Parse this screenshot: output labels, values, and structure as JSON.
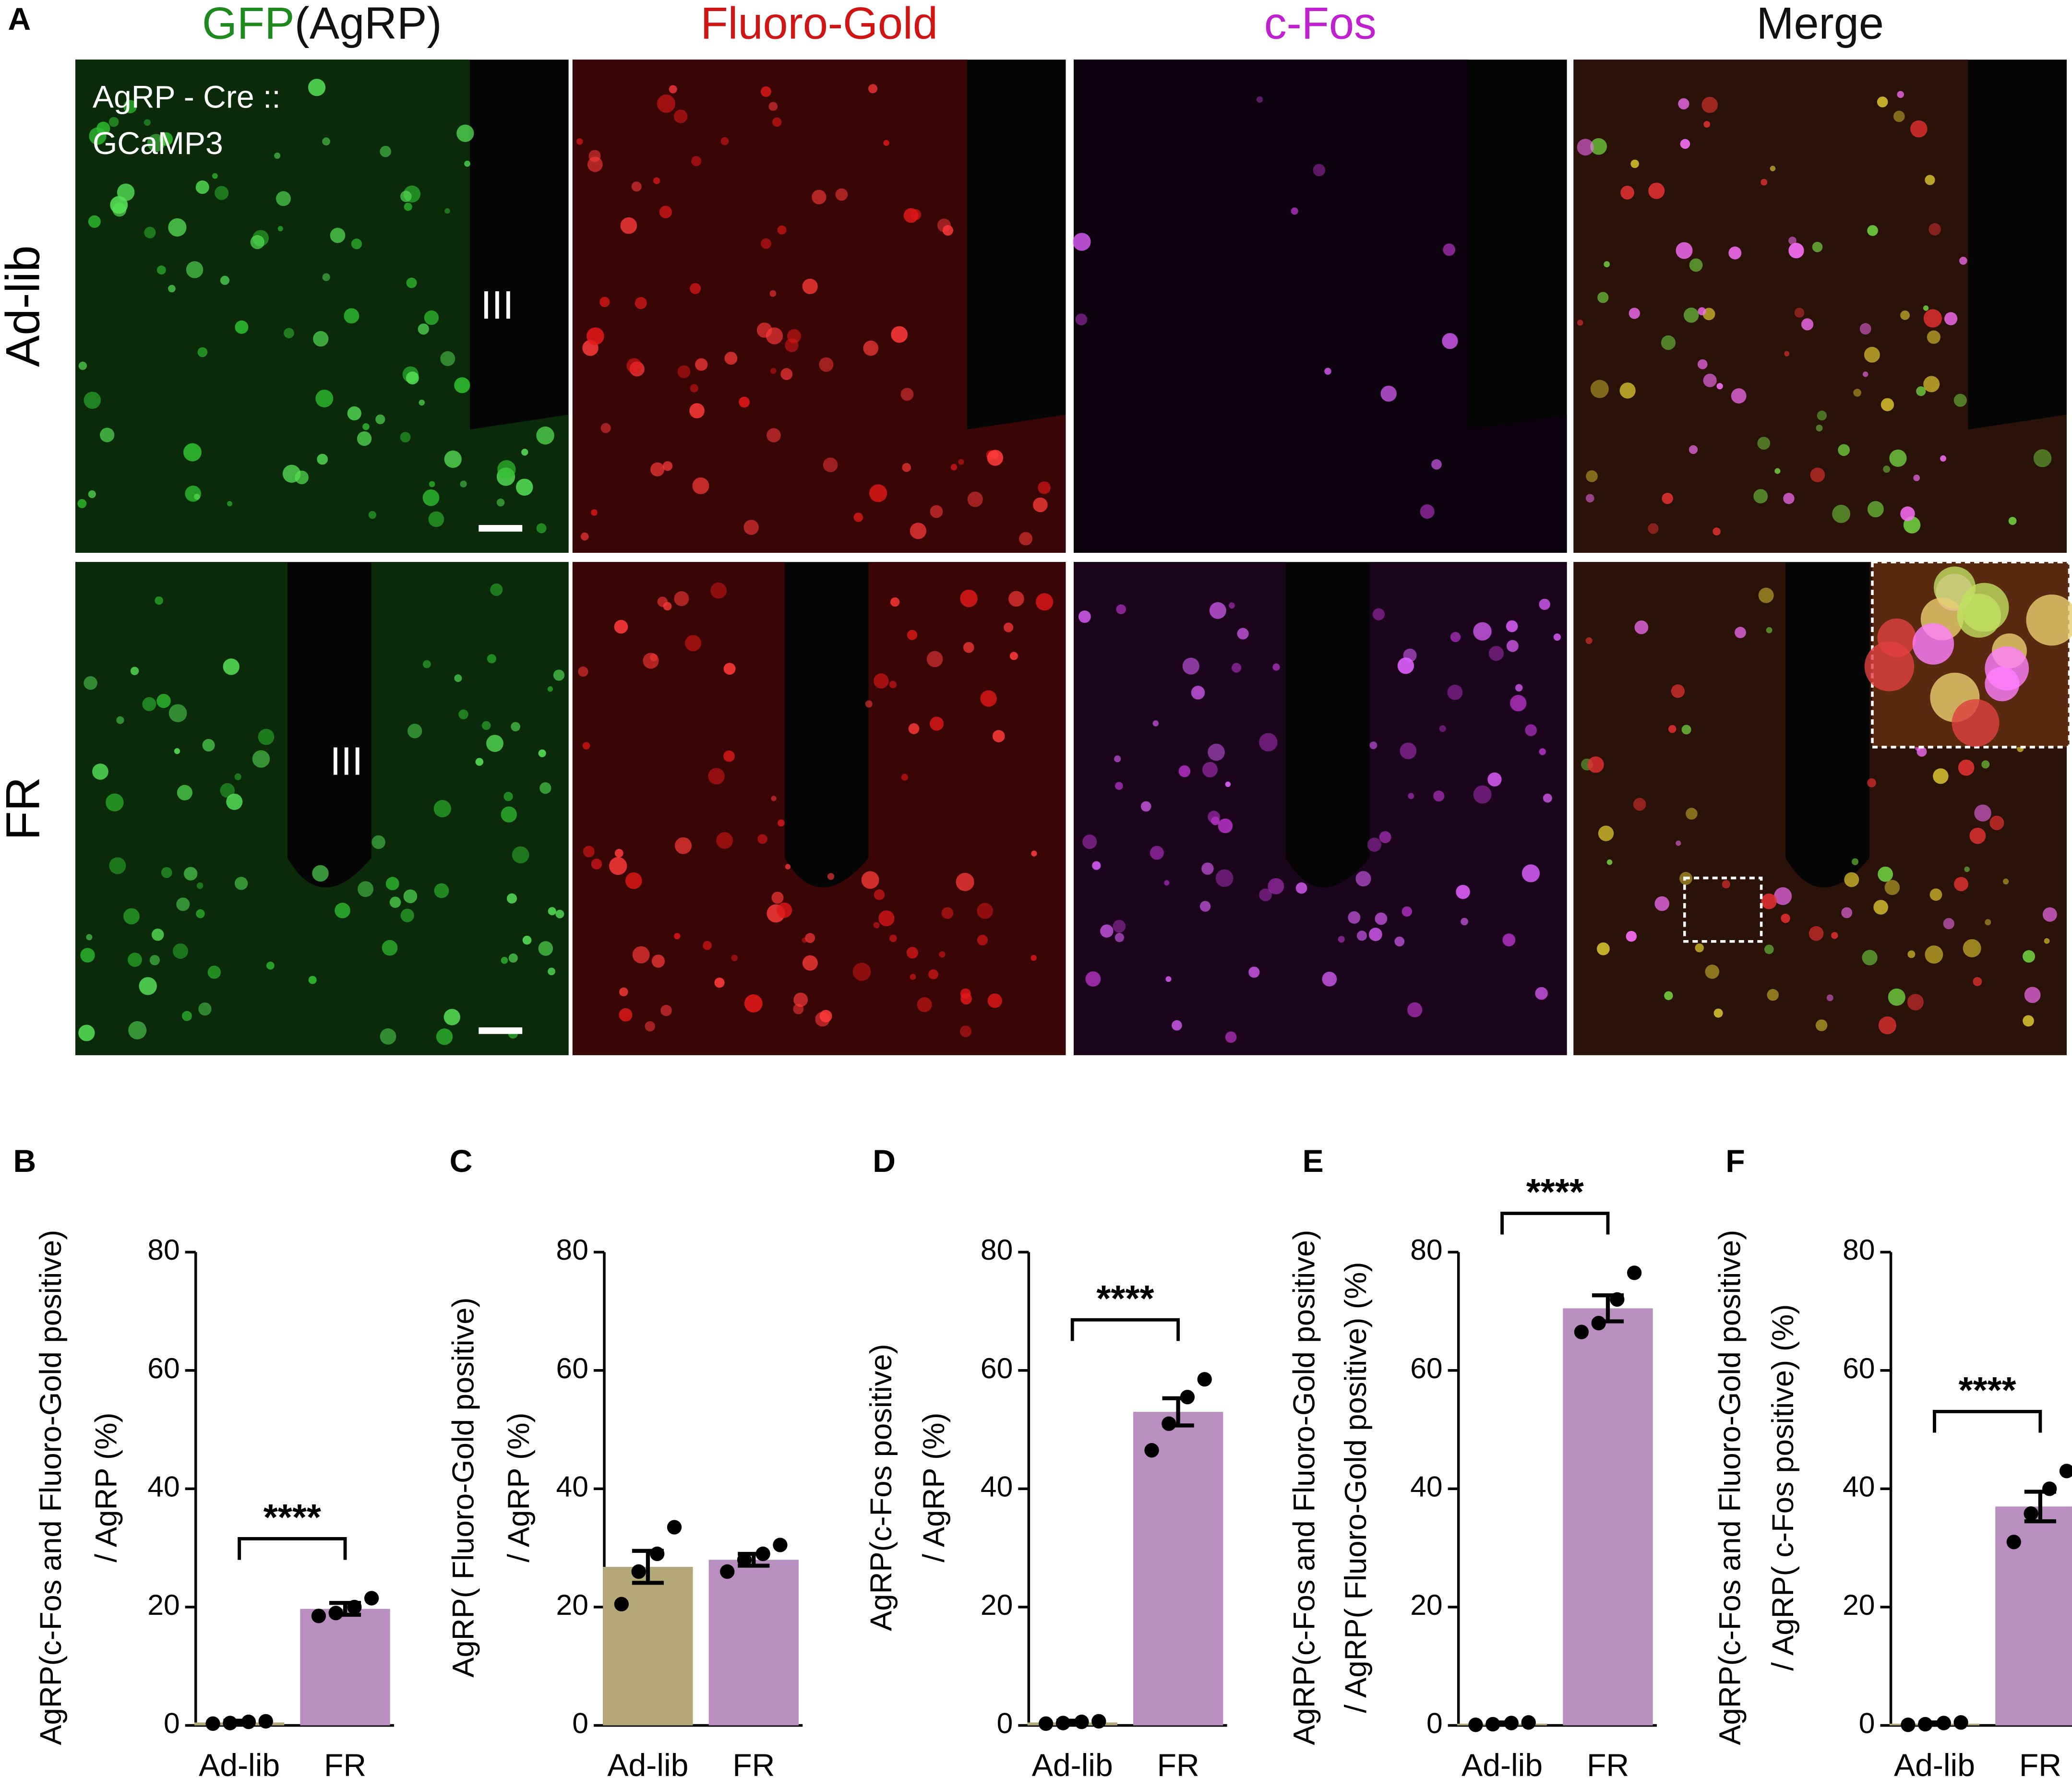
{
  "panel_a": {
    "label": "A",
    "columns": [
      [
        "GFP",
        "(AgRP)"
      ],
      [
        "Fluoro-Gold"
      ],
      [
        "c-Fos"
      ],
      [
        "Merge"
      ]
    ],
    "rows": [
      "Ad-lib",
      "FR"
    ],
    "genotype": [
      "AgRP - Cre ::",
      "GCaMP3"
    ],
    "ventricle_labels": [
      "III",
      "III"
    ]
  },
  "chart_data": [
    {
      "type": "bar",
      "panel": "B",
      "ylabel": [
        "AgRP(c-Fos and Fluoro-Gold positive)",
        "/ AgRP (%)"
      ],
      "categories": [
        "Ad-lib",
        "FR"
      ],
      "values": [
        0.5,
        19.7
      ],
      "errors": [
        0.3,
        1
      ],
      "points": [
        [
          0.3,
          0.4,
          0.6,
          0.7
        ],
        [
          18.5,
          19,
          20,
          21.5
        ]
      ],
      "colors": [
        "#b5a878",
        "#b88fbf"
      ],
      "ylim": [
        0,
        80
      ],
      "yticks": [
        0,
        20,
        40,
        60,
        80
      ],
      "significance": "****"
    },
    {
      "type": "bar",
      "panel": "C",
      "ylabel": [
        "AgRP( Fluoro-Gold positive)",
        "/ AgRP (%)"
      ],
      "categories": [
        "Ad-lib",
        "FR"
      ],
      "values": [
        26.8,
        28
      ],
      "errors": [
        2.7,
        1
      ],
      "points": [
        [
          20.5,
          26,
          29,
          33.5
        ],
        [
          26,
          28,
          29,
          30.5
        ]
      ],
      "colors": [
        "#b5a878",
        "#b88fbf"
      ],
      "ylim": [
        0,
        80
      ],
      "yticks": [
        0,
        20,
        40,
        60,
        80
      ]
    },
    {
      "type": "bar",
      "panel": "D",
      "ylabel": [
        "AgRP(c-Fos positive)",
        "/ AgRP (%)"
      ],
      "categories": [
        "Ad-lib",
        "FR"
      ],
      "values": [
        0.5,
        53
      ],
      "errors": [
        0.3,
        2.3
      ],
      "points": [
        [
          0.3,
          0.4,
          0.6,
          0.7
        ],
        [
          46.5,
          51,
          55.5,
          58.5
        ]
      ],
      "colors": [
        "#b5a878",
        "#b88fbf"
      ],
      "ylim": [
        0,
        80
      ],
      "yticks": [
        0,
        20,
        40,
        60,
        80
      ],
      "significance": "****"
    },
    {
      "type": "bar",
      "panel": "E",
      "ylabel": [
        "AgRP(c-Fos and Fluoro-Gold positive)",
        "/ AgRP( Fluoro-Gold positive) (%)"
      ],
      "categories": [
        "Ad-lib",
        "FR"
      ],
      "values": [
        0.3,
        70.5
      ],
      "errors": [
        0.2,
        2.2
      ],
      "points": [
        [
          0.1,
          0.2,
          0.4,
          0.5
        ],
        [
          66.5,
          68,
          72,
          76.5
        ]
      ],
      "colors": [
        "#b5a878",
        "#b88fbf"
      ],
      "ylim": [
        0,
        80
      ],
      "yticks": [
        0,
        20,
        40,
        60,
        80
      ],
      "significance": "****"
    },
    {
      "type": "bar",
      "panel": "F",
      "ylabel": [
        "AgRP(c-Fos and Fluoro-Gold positive)",
        "/ AgRP( c-Fos positive) (%)"
      ],
      "categories": [
        "Ad-lib",
        "FR"
      ],
      "values": [
        0.3,
        37
      ],
      "errors": [
        0.2,
        2.5
      ],
      "points": [
        [
          0.1,
          0.2,
          0.4,
          0.5
        ],
        [
          31,
          35.8,
          40,
          43
        ]
      ],
      "colors": [
        "#b5a878",
        "#b88fbf"
      ],
      "ylim": [
        0,
        80
      ],
      "yticks": [
        0,
        20,
        40,
        60,
        80
      ],
      "significance": "****"
    }
  ]
}
